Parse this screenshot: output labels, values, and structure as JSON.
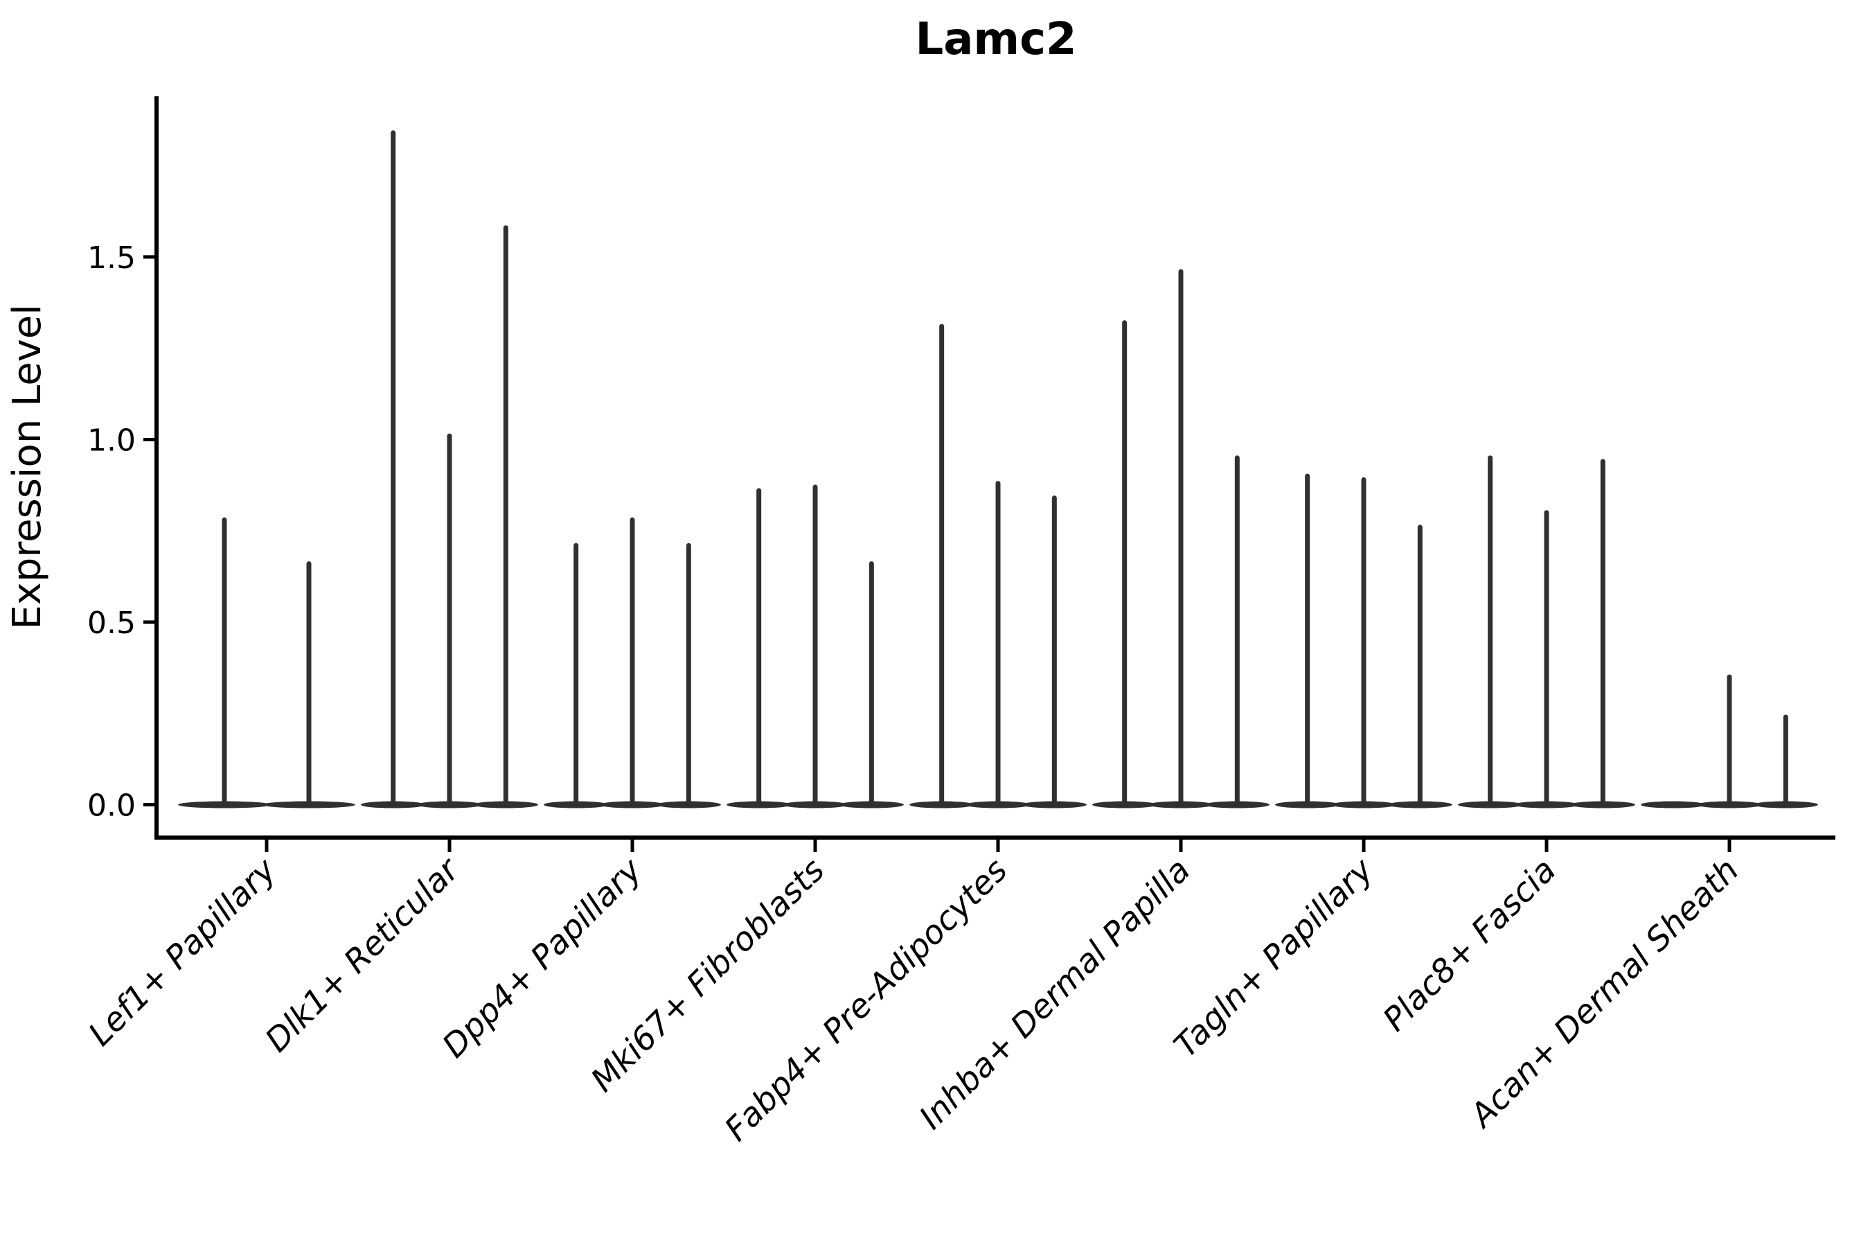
{
  "chart_data": {
    "type": "violin",
    "title": "Lamc2",
    "ylabel": "Expression Level",
    "xlabel": "",
    "grid": false,
    "legend": "none",
    "ylim": [
      -0.09,
      1.94
    ],
    "yticks": [
      0.0,
      0.5,
      1.0,
      1.5
    ],
    "ytick_labels": [
      "0.0",
      "0.5",
      "1.0",
      "1.5"
    ],
    "violin_color": "#303030",
    "axis_color": "#000000",
    "note": "Each category shows thin violins with expression mass concentrated at 0 (flat base) and a narrow spike reaching the maximum expression value.",
    "categories": [
      {
        "label": "Lef1+ Papillary",
        "violin_max_expression": [
          0.78,
          0.66
        ]
      },
      {
        "label": "Dlk1+ Reticular",
        "violin_max_expression": [
          1.84,
          1.01,
          1.58
        ]
      },
      {
        "label": "Dpp4+ Papillary",
        "violin_max_expression": [
          0.71,
          0.78,
          0.71
        ]
      },
      {
        "label": "Mki67+ Fibroblasts",
        "violin_max_expression": [
          0.86,
          0.87,
          0.66
        ]
      },
      {
        "label": "Fabp4+ Pre-Adipocytes",
        "violin_max_expression": [
          1.31,
          0.88,
          0.84
        ]
      },
      {
        "label": "Inhba+ Dermal Papilla",
        "violin_max_expression": [
          1.32,
          1.46,
          0.95
        ]
      },
      {
        "label": "Tagln+ Papillary",
        "violin_max_expression": [
          0.9,
          0.89,
          0.76
        ]
      },
      {
        "label": "Plac8+ Fascia",
        "violin_max_expression": [
          0.95,
          0.8,
          0.94
        ]
      },
      {
        "label": "Acan+ Dermal Sheath",
        "violin_max_expression": [
          0.0,
          0.35,
          0.24
        ]
      }
    ]
  }
}
